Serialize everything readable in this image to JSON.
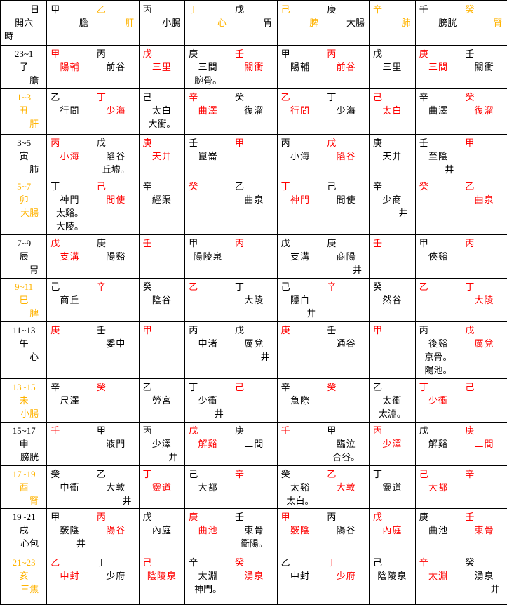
{
  "colors": {
    "red": "#ff0000",
    "gold": "#ffb300",
    "black": "#000000"
  },
  "header": {
    "corner": {
      "top": "日",
      "middle": "開穴",
      "bottom": "時"
    },
    "columns": [
      {
        "stem": "甲",
        "organ": "膽",
        "tone": "black"
      },
      {
        "stem": "乙",
        "organ": "肝",
        "tone": "orange"
      },
      {
        "stem": "丙",
        "organ": "小腸",
        "tone": "black"
      },
      {
        "stem": "丁",
        "organ": "心",
        "tone": "orange"
      },
      {
        "stem": "戊",
        "organ": "胃",
        "tone": "black"
      },
      {
        "stem": "己",
        "organ": "脾",
        "tone": "orange"
      },
      {
        "stem": "庚",
        "organ": "大腸",
        "tone": "black"
      },
      {
        "stem": "辛",
        "organ": "肺",
        "tone": "orange"
      },
      {
        "stem": "壬",
        "organ": "膀胱",
        "tone": "black"
      },
      {
        "stem": "癸",
        "organ": "腎",
        "tone": "orange"
      }
    ]
  },
  "rows": [
    {
      "label": {
        "time": "23~1",
        "branch": "子",
        "organ": "膽",
        "tone": "black"
      },
      "cells": [
        {
          "stem": "甲",
          "point": "陽輔",
          "tone": "red"
        },
        {
          "stem": "丙",
          "point": "前谷",
          "tone": "black"
        },
        {
          "stem": "戊",
          "point": "三里",
          "tone": "red"
        },
        {
          "stem": "庚",
          "point": "三間",
          "extra": [
            "腕骨。"
          ],
          "tone": "black"
        },
        {
          "stem": "壬",
          "point": "關衝",
          "tone": "red"
        },
        {
          "stem": "甲",
          "point": "陽輔",
          "tone": "black"
        },
        {
          "stem": "丙",
          "point": "前谷",
          "tone": "red"
        },
        {
          "stem": "戊",
          "point": "三里",
          "tone": "black"
        },
        {
          "stem": "庚",
          "point": "三間",
          "tone": "red"
        },
        {
          "stem": "壬",
          "point": "關衝",
          "tone": "black"
        }
      ]
    },
    {
      "label": {
        "time": "1~3",
        "branch": "丑",
        "organ": "肝",
        "tone": "orange"
      },
      "cells": [
        {
          "stem": "乙",
          "point": "行間",
          "tone": "black"
        },
        {
          "stem": "丁",
          "point": "少海",
          "tone": "red"
        },
        {
          "stem": "己",
          "point": "太白",
          "extra": [
            "大衝。"
          ],
          "tone": "black"
        },
        {
          "stem": "辛",
          "point": "曲澤",
          "tone": "red"
        },
        {
          "stem": "癸",
          "point": "復溜",
          "tone": "black"
        },
        {
          "stem": "乙",
          "point": "行間",
          "tone": "red"
        },
        {
          "stem": "丁",
          "point": "少海",
          "tone": "black"
        },
        {
          "stem": "己",
          "point": "太白",
          "tone": "red"
        },
        {
          "stem": "辛",
          "point": "曲澤",
          "tone": "black"
        },
        {
          "stem": "癸",
          "point": "復溜",
          "tone": "red"
        }
      ]
    },
    {
      "label": {
        "time": "3~5",
        "branch": "寅",
        "organ": "肺",
        "tone": "black"
      },
      "cells": [
        {
          "stem": "丙",
          "point": "小海",
          "tone": "red"
        },
        {
          "stem": "戊",
          "point": "陷谷",
          "extra": [
            "丘墟。"
          ],
          "tone": "black"
        },
        {
          "stem": "庚",
          "point": "天井",
          "tone": "red"
        },
        {
          "stem": "壬",
          "point": "崑崙",
          "tone": "black"
        },
        {
          "stem": "甲",
          "tone": "red"
        },
        {
          "stem": "丙",
          "point": "小海",
          "tone": "black"
        },
        {
          "stem": "戊",
          "point": "陷谷",
          "tone": "red"
        },
        {
          "stem": "庚",
          "point": "天井",
          "tone": "black"
        },
        {
          "stem": "壬",
          "point": "至陰",
          "well": "井",
          "tone": "black"
        },
        {
          "stem": "甲",
          "tone": "red"
        }
      ]
    },
    {
      "label": {
        "time": "5~7",
        "branch": "卯",
        "organ": "大腸",
        "tone": "orange"
      },
      "cells": [
        {
          "stem": "丁",
          "point": "神門",
          "extra": [
            "太谿。",
            "大陵。"
          ],
          "tone": "black"
        },
        {
          "stem": "己",
          "point": "間使",
          "tone": "red"
        },
        {
          "stem": "辛",
          "point": "經渠",
          "tone": "black"
        },
        {
          "stem": "癸",
          "tone": "red"
        },
        {
          "stem": "乙",
          "point": "曲泉",
          "tone": "black"
        },
        {
          "stem": "丁",
          "point": "神門",
          "tone": "red"
        },
        {
          "stem": "己",
          "point": "間使",
          "tone": "black"
        },
        {
          "stem": "辛",
          "point": "少商",
          "well": "井",
          "tone": "black"
        },
        {
          "stem": "癸",
          "tone": "red"
        },
        {
          "stem": "乙",
          "point": "曲泉",
          "tone": "red"
        }
      ]
    },
    {
      "label": {
        "time": "7~9",
        "branch": "辰",
        "organ": "胃",
        "tone": "black"
      },
      "cells": [
        {
          "stem": "戊",
          "point": "支溝",
          "tone": "red"
        },
        {
          "stem": "庚",
          "point": "陽谿",
          "tone": "black"
        },
        {
          "stem": "壬",
          "tone": "red"
        },
        {
          "stem": "甲",
          "point": "陽陵泉",
          "tone": "black"
        },
        {
          "stem": "丙",
          "tone": "red"
        },
        {
          "stem": "戊",
          "point": "支溝",
          "tone": "black"
        },
        {
          "stem": "庚",
          "point": "商陽",
          "well": "井",
          "tone": "black"
        },
        {
          "stem": "壬",
          "tone": "red"
        },
        {
          "stem": "甲",
          "point": "俠谿",
          "tone": "black"
        },
        {
          "stem": "丙",
          "tone": "red"
        }
      ]
    },
    {
      "label": {
        "time": "9~11",
        "branch": "巳",
        "organ": "脾",
        "tone": "orange"
      },
      "cells": [
        {
          "stem": "己",
          "point": "商丘",
          "tone": "black"
        },
        {
          "stem": "辛",
          "tone": "red"
        },
        {
          "stem": "癸",
          "point": "陰谷",
          "tone": "black"
        },
        {
          "stem": "乙",
          "tone": "red"
        },
        {
          "stem": "丁",
          "point": "大陵",
          "tone": "black"
        },
        {
          "stem": "己",
          "point": "隱白",
          "well": "井",
          "tone": "black"
        },
        {
          "stem": "辛",
          "tone": "red"
        },
        {
          "stem": "癸",
          "point": "然谷",
          "tone": "black"
        },
        {
          "stem": "乙",
          "tone": "red"
        },
        {
          "stem": "丁",
          "point": "大陵",
          "tone": "red"
        }
      ]
    },
    {
      "label": {
        "time": "11~13",
        "branch": "午",
        "organ": "心",
        "tone": "black"
      },
      "cells": [
        {
          "stem": "庚",
          "tone": "red"
        },
        {
          "stem": "壬",
          "point": "委中",
          "tone": "black"
        },
        {
          "stem": "甲",
          "tone": "red"
        },
        {
          "stem": "丙",
          "point": "中渚",
          "tone": "black"
        },
        {
          "stem": "戊",
          "point": "厲兌",
          "well": "井",
          "tone": "black"
        },
        {
          "stem": "庚",
          "tone": "red"
        },
        {
          "stem": "壬",
          "point": "通谷",
          "tone": "black"
        },
        {
          "stem": "甲",
          "tone": "red"
        },
        {
          "stem": "丙",
          "point": "後谿",
          "extra": [
            "京骨。",
            "陽池。"
          ],
          "tone": "black"
        },
        {
          "stem": "戊",
          "point": "厲兌",
          "tone": "red"
        }
      ]
    },
    {
      "label": {
        "time": "13~15",
        "branch": "未",
        "organ": "小腸",
        "tone": "orange"
      },
      "cells": [
        {
          "stem": "辛",
          "point": "尺澤",
          "tone": "black"
        },
        {
          "stem": "癸",
          "tone": "red"
        },
        {
          "stem": "乙",
          "point": "勞宮",
          "tone": "black"
        },
        {
          "stem": "丁",
          "point": "少衝",
          "well": "井",
          "tone": "black"
        },
        {
          "stem": "己",
          "tone": "red"
        },
        {
          "stem": "辛",
          "point": "魚際",
          "tone": "black"
        },
        {
          "stem": "癸",
          "tone": "red"
        },
        {
          "stem": "乙",
          "point": "太衝",
          "extra": [
            "太淵。"
          ],
          "tone": "black"
        },
        {
          "stem": "丁",
          "point": "少衝",
          "tone": "red"
        },
        {
          "stem": "己",
          "tone": "red"
        }
      ]
    },
    {
      "label": {
        "time": "15~17",
        "branch": "申",
        "organ": "膀胱",
        "tone": "black"
      },
      "cells": [
        {
          "stem": "壬",
          "tone": "red"
        },
        {
          "stem": "甲",
          "point": "液門",
          "tone": "black"
        },
        {
          "stem": "丙",
          "point": "少澤",
          "well": "井",
          "tone": "black"
        },
        {
          "stem": "戊",
          "point": "解谿",
          "tone": "red"
        },
        {
          "stem": "庚",
          "point": "二間",
          "tone": "black"
        },
        {
          "stem": "壬",
          "tone": "red"
        },
        {
          "stem": "甲",
          "point": "臨泣",
          "extra": [
            "合谷。"
          ],
          "tone": "black"
        },
        {
          "stem": "丙",
          "point": "少澤",
          "tone": "red"
        },
        {
          "stem": "戊",
          "point": "解谿",
          "tone": "black"
        },
        {
          "stem": "庚",
          "point": "二間",
          "tone": "red"
        }
      ]
    },
    {
      "label": {
        "time": "17~19",
        "branch": "酉",
        "organ": "腎",
        "tone": "orange"
      },
      "cells": [
        {
          "stem": "癸",
          "point": "中衝",
          "tone": "black"
        },
        {
          "stem": "乙",
          "point": "大敦",
          "well": "井",
          "tone": "black"
        },
        {
          "stem": "丁",
          "point": "靈道",
          "tone": "red"
        },
        {
          "stem": "己",
          "point": "大都",
          "tone": "black"
        },
        {
          "stem": "辛",
          "tone": "red"
        },
        {
          "stem": "癸",
          "point": "太谿",
          "extra": [
            "太白。"
          ],
          "tone": "black"
        },
        {
          "stem": "乙",
          "point": "大敦",
          "tone": "red"
        },
        {
          "stem": "丁",
          "point": "靈道",
          "tone": "black"
        },
        {
          "stem": "己",
          "point": "大都",
          "tone": "red"
        },
        {
          "stem": "辛",
          "tone": "red"
        }
      ]
    },
    {
      "label": {
        "time": "19~21",
        "branch": "戌",
        "organ": "心包",
        "tone": "black"
      },
      "cells": [
        {
          "stem": "甲",
          "point": "竅陰",
          "well": "井",
          "tone": "black"
        },
        {
          "stem": "丙",
          "point": "陽谷",
          "tone": "red"
        },
        {
          "stem": "戊",
          "point": "內庭",
          "tone": "black"
        },
        {
          "stem": "庚",
          "point": "曲池",
          "tone": "red"
        },
        {
          "stem": "壬",
          "point": "束骨",
          "extra": [
            "衝陽。"
          ],
          "tone": "black"
        },
        {
          "stem": "甲",
          "point": "竅陰",
          "tone": "red"
        },
        {
          "stem": "丙",
          "point": "陽谷",
          "tone": "black"
        },
        {
          "stem": "戊",
          "point": "內庭",
          "tone": "red"
        },
        {
          "stem": "庚",
          "point": "曲池",
          "tone": "black"
        },
        {
          "stem": "壬",
          "point": "束骨",
          "tone": "red"
        }
      ]
    },
    {
      "label": {
        "time": "21~23",
        "branch": "亥",
        "organ": "三焦",
        "tone": "orange"
      },
      "cells": [
        {
          "stem": "乙",
          "point": "中封",
          "tone": "red"
        },
        {
          "stem": "丁",
          "point": "少府",
          "tone": "black"
        },
        {
          "stem": "己",
          "point": "陰陵泉",
          "tone": "red"
        },
        {
          "stem": "辛",
          "point": "太淵",
          "extra": [
            "神門。"
          ],
          "tone": "black"
        },
        {
          "stem": "癸",
          "point": "湧泉",
          "tone": "red"
        },
        {
          "stem": "乙",
          "point": "中封",
          "tone": "black"
        },
        {
          "stem": "丁",
          "point": "少府",
          "tone": "red"
        },
        {
          "stem": "己",
          "point": "陰陵泉",
          "tone": "black"
        },
        {
          "stem": "辛",
          "point": "太淵",
          "tone": "red"
        },
        {
          "stem": "癸",
          "point": "湧泉",
          "well": "井",
          "tone": "black"
        }
      ]
    }
  ]
}
